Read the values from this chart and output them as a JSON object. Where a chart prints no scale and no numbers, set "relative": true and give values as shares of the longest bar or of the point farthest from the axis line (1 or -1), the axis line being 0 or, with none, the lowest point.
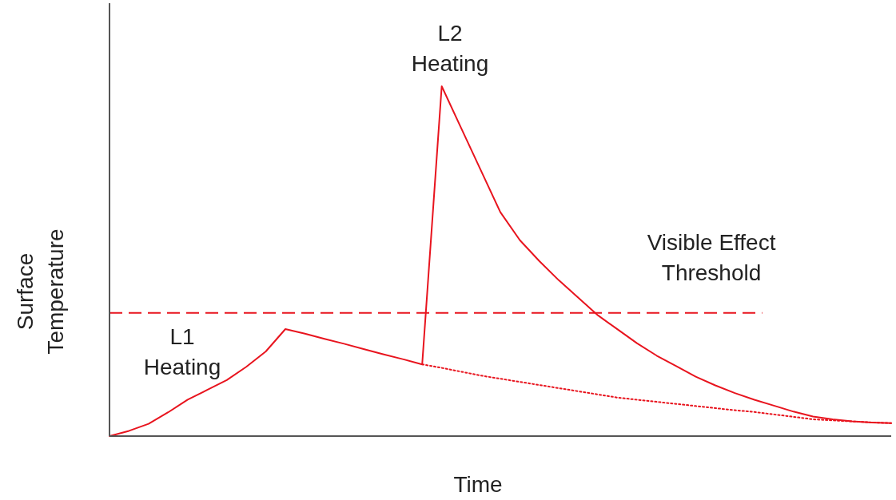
{
  "chart_data": {
    "type": "line",
    "relative": true,
    "xlabel": "Time",
    "ylabel": "Surface\nTemperature",
    "marker": "none",
    "categories": [
      null,
      null,
      null,
      null,
      null,
      null,
      null,
      null,
      null,
      null,
      null,
      null,
      null,
      null,
      null,
      null,
      null,
      null,
      null,
      null,
      null,
      null,
      null,
      null,
      null,
      null,
      null,
      null,
      null,
      null,
      null,
      null,
      null,
      null,
      null,
      null,
      null,
      null,
      null,
      null,
      null
    ],
    "series": [
      {
        "color": "#e8141e",
        "line_style": "solid",
        "values": [
          0,
          0.015,
          0.035,
          0.068,
          0.104,
          0.132,
          0.16,
          0.198,
          0.242,
          0.306,
          0.293,
          0.278,
          0.264,
          0.249,
          0.234,
          0.22,
          0.205,
          1,
          0.88,
          0.76,
          0.64,
          0.56,
          0.5,
          0.445,
          0.395,
          0.345,
          0.305,
          0.265,
          0.23,
          0.2,
          0.17,
          0.145,
          0.123,
          0.104,
          0.087,
          0.07,
          0.056,
          0.048,
          0.042,
          0.039,
          0.037
        ]
      },
      {
        "color": "#e8141e",
        "line_style": "dotted",
        "values": [
          null,
          null,
          null,
          null,
          null,
          null,
          null,
          null,
          null,
          null,
          null,
          null,
          null,
          null,
          null,
          null,
          0.205,
          0.195,
          0.184,
          0.173,
          0.164,
          0.155,
          0.146,
          0.137,
          0.128,
          0.119,
          0.11,
          0.104,
          0.098,
          0.092,
          0.086,
          0.08,
          0.074,
          0.069,
          0.062,
          0.055,
          0.048,
          0.045,
          0.042,
          0.039,
          0.037
        ]
      }
    ],
    "ref_lines": [
      {
        "axis": "y",
        "value": 0.352,
        "label": "Visible Effect\nThreshold",
        "color": "#e8141e",
        "line_style": "dashed"
      }
    ],
    "annotations": [
      "L1\nHeating",
      "L2\nHeating"
    ]
  }
}
